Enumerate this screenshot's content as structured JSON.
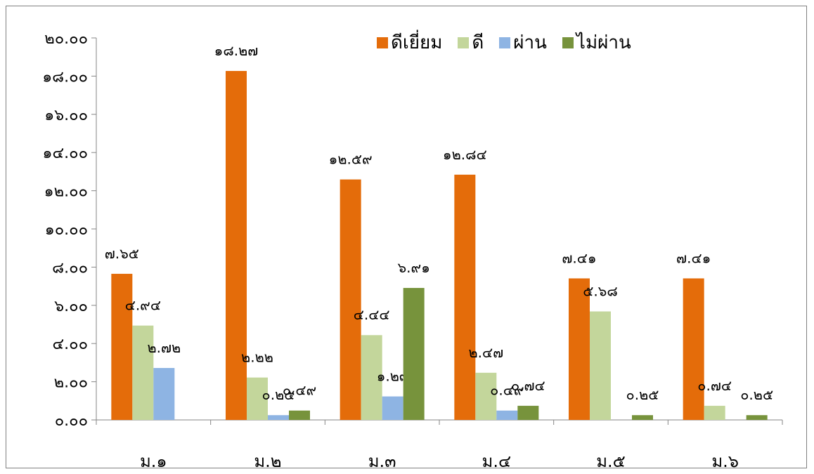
{
  "chart_data": {
    "type": "bar",
    "title": "",
    "xlabel": "",
    "ylabel": "",
    "ylim": [
      0,
      20
    ],
    "y_ticks": [
      0,
      2,
      4,
      6,
      8,
      10,
      12,
      14,
      16,
      18,
      20
    ],
    "y_tick_labels": [
      "๐.๐๐",
      "๒.๐๐",
      "๔.๐๐",
      "๖.๐๐",
      "๘.๐๐",
      "๑๐.๐๐",
      "๑๒.๐๐",
      "๑๔.๐๐",
      "๑๖.๐๐",
      "๑๘.๐๐",
      "๒๐.๐๐"
    ],
    "categories": [
      "ม.๑",
      "ม.๒",
      "ม.๓",
      "ม.๔",
      "ม.๕",
      "ม.๖"
    ],
    "grid": false,
    "legend_position": "top-right",
    "series": [
      {
        "name": "ดีเยี่ยม",
        "color": "#E46C0A",
        "values": [
          7.65,
          18.27,
          12.59,
          12.84,
          7.41,
          7.41
        ],
        "labels": [
          "๗.๖๕",
          "๑๘.๒๗",
          "๑๒.๕๙",
          "๑๒.๘๔",
          "๗.๔๑",
          "๗.๔๑"
        ]
      },
      {
        "name": "ดี",
        "color": "#C3D69B",
        "values": [
          4.94,
          2.22,
          4.44,
          2.47,
          5.68,
          0.74
        ],
        "labels": [
          "๔.๙๔",
          "๒.๒๒",
          "๔.๔๔",
          "๒.๔๗",
          "๕.๖๘",
          "๐.๗๔"
        ]
      },
      {
        "name": "ผ่าน",
        "color": "#8EB4E3",
        "values": [
          2.72,
          0.25,
          1.23,
          0.49,
          0,
          0
        ],
        "labels": [
          "๒.๗๒",
          "๐.๒๕",
          "๑.๒๓",
          "๐.๔๙",
          "",
          ""
        ]
      },
      {
        "name": "ไม่ผ่าน",
        "color": "#77933C",
        "values": [
          0,
          0.49,
          6.91,
          0.74,
          0.25,
          0.25
        ],
        "labels": [
          "",
          "๐.๔๙",
          "๖.๙๑",
          "๐.๗๔",
          "๐.๒๕",
          "๐.๒๕"
        ]
      }
    ]
  }
}
